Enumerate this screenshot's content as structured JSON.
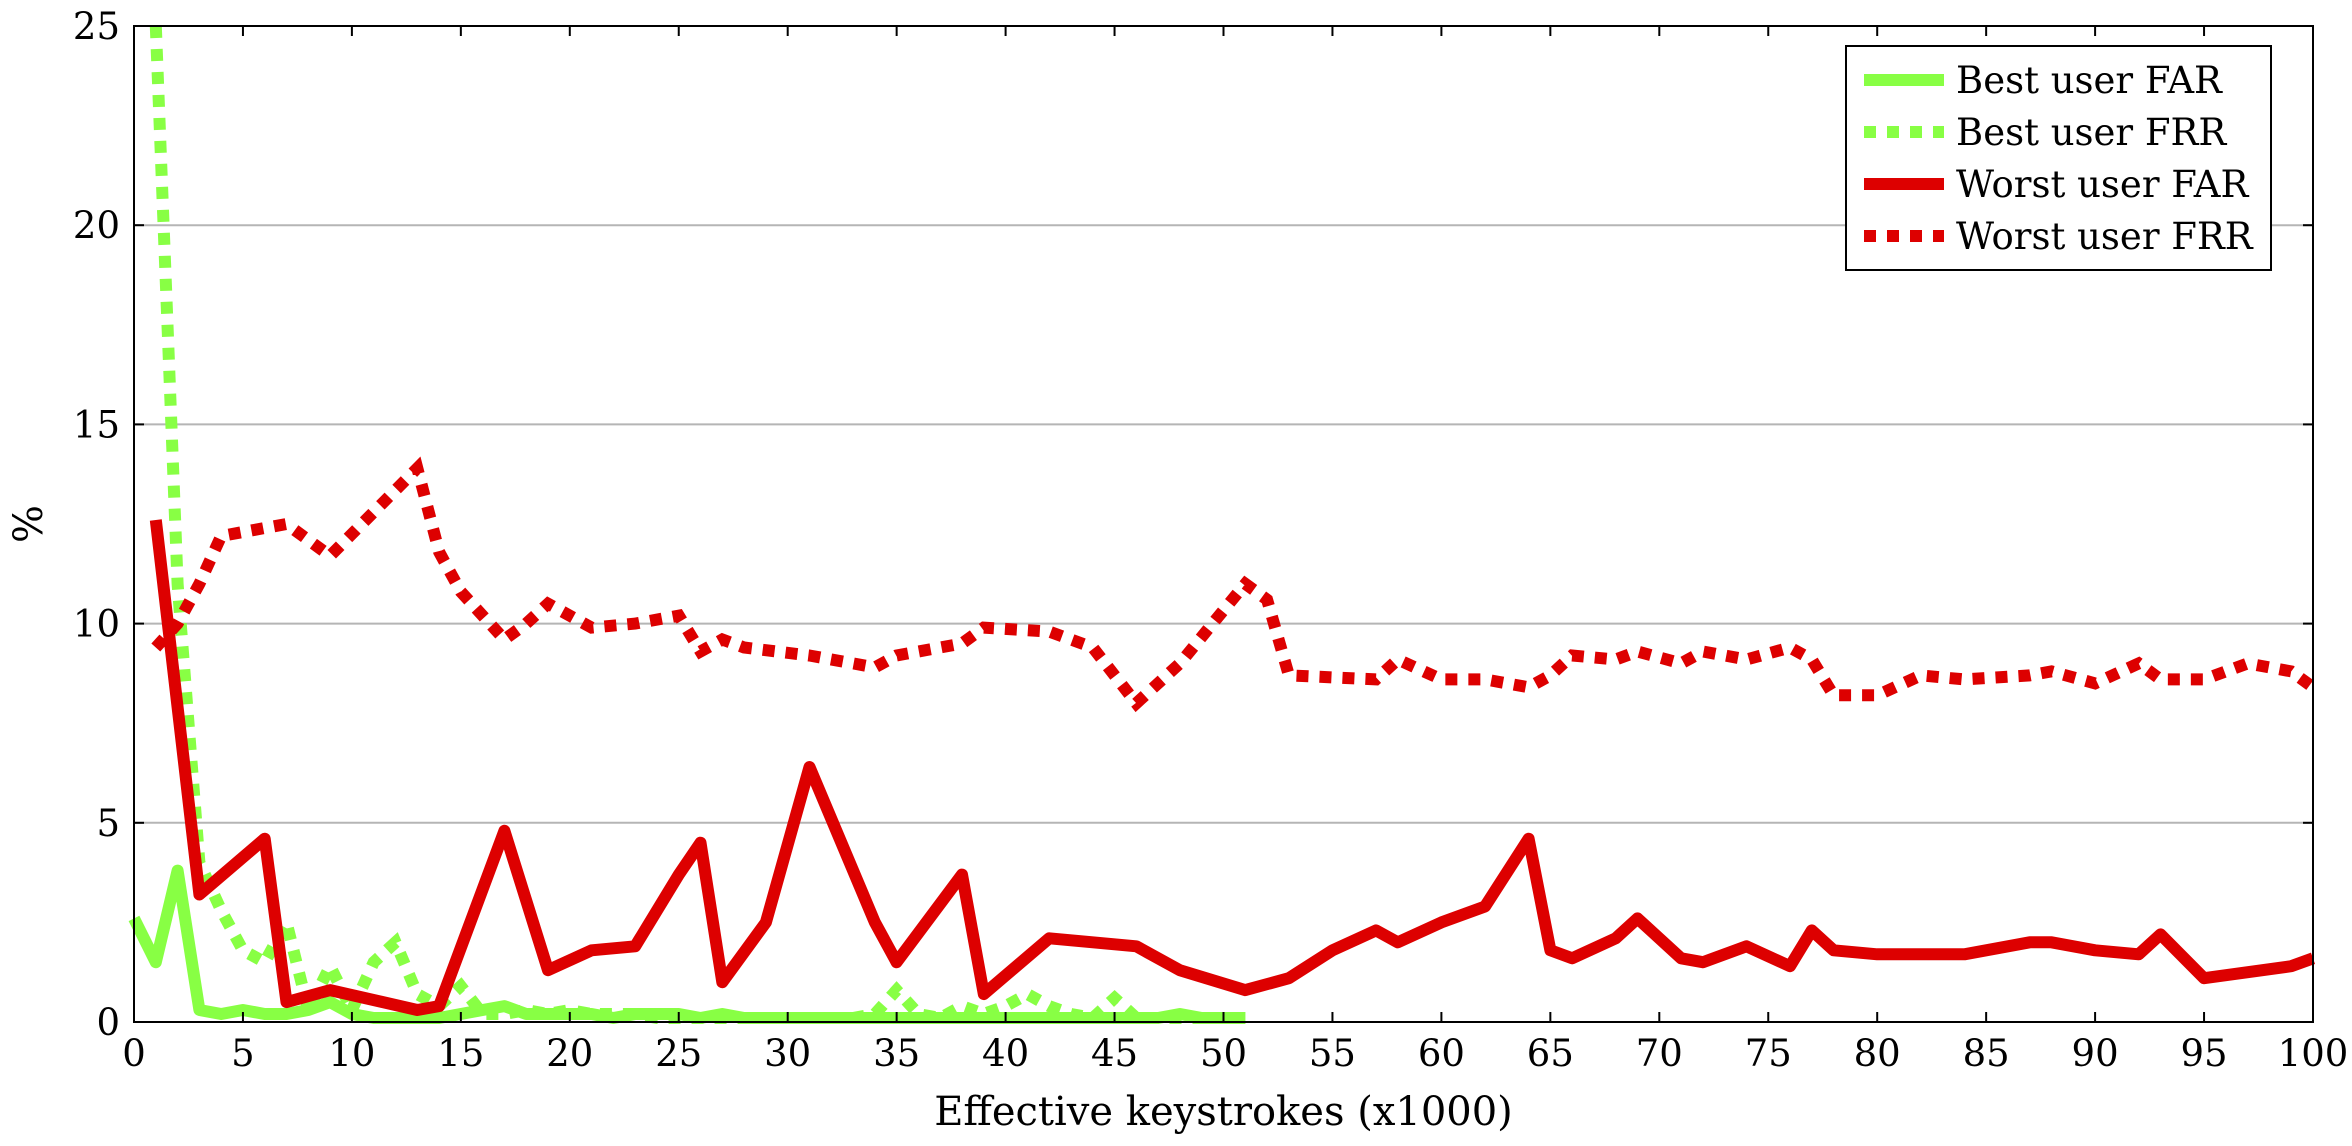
{
  "chart_data": {
    "type": "line",
    "xlabel": "Effective keystrokes (x1000)",
    "ylabel": "%",
    "xlim": [
      0,
      100
    ],
    "ylim": [
      0,
      25
    ],
    "xticks": [
      0,
      5,
      10,
      15,
      20,
      25,
      30,
      35,
      40,
      45,
      50,
      55,
      60,
      65,
      70,
      75,
      80,
      85,
      90,
      95,
      100
    ],
    "yticks": [
      0,
      5,
      10,
      15,
      20,
      25
    ],
    "grid": "horizontal",
    "legend_position": "top-right",
    "series": [
      {
        "name": "Best user FAR",
        "color": "#88ff44",
        "style": "solid",
        "x": [
          0,
          1,
          2,
          3,
          4,
          5,
          6,
          7,
          8,
          9,
          10,
          11,
          12,
          13,
          14,
          15,
          16,
          17,
          18,
          19,
          20,
          21,
          22,
          23,
          24,
          25,
          26,
          27,
          28,
          29,
          30,
          31,
          32,
          33,
          34,
          35,
          36,
          37,
          38,
          39,
          40,
          41,
          42,
          43,
          44,
          45,
          46,
          47,
          48,
          49,
          50,
          51
        ],
        "y": [
          2.6,
          1.5,
          3.8,
          0.3,
          0.2,
          0.3,
          0.2,
          0.2,
          0.3,
          0.5,
          0.2,
          0.1,
          0.1,
          0.1,
          0.1,
          0.2,
          0.3,
          0.4,
          0.2,
          0.2,
          0.2,
          0.2,
          0.1,
          0.2,
          0.2,
          0.2,
          0.1,
          0.2,
          0.1,
          0.1,
          0.1,
          0.1,
          0.1,
          0.1,
          0.1,
          0.1,
          0.1,
          0.1,
          0.1,
          0.1,
          0.1,
          0.1,
          0.1,
          0.1,
          0.1,
          0.1,
          0.1,
          0.1,
          0.2,
          0.1,
          0.1,
          0.1
        ]
      },
      {
        "name": "Best user FRR",
        "color": "#88ff44",
        "style": "dotted",
        "x": [
          1,
          2,
          3,
          4,
          5,
          6,
          7,
          8,
          9,
          10,
          11,
          12,
          13,
          14,
          15,
          16,
          17,
          18,
          19,
          20,
          21,
          22,
          23,
          24,
          25,
          26,
          27,
          28,
          29,
          30,
          31,
          32,
          33,
          34,
          35,
          36,
          37,
          38,
          39,
          40,
          41,
          42,
          43,
          44,
          45,
          46,
          47,
          48,
          49,
          50,
          51
        ],
        "y": [
          25,
          11.0,
          4.0,
          2.8,
          1.8,
          1.5,
          2.5,
          0.3,
          1.4,
          0.3,
          1.5,
          2.0,
          0.7,
          0.4,
          0.9,
          0.2,
          0.2,
          0.3,
          0.2,
          0.3,
          0.2,
          0.2,
          0.2,
          0.1,
          0.1,
          0.1,
          0.1,
          0.1,
          0.1,
          0.1,
          0.1,
          0.1,
          0.1,
          0.2,
          0.8,
          0.2,
          0.1,
          0.4,
          0.2,
          0.4,
          0.7,
          0.4,
          0.2,
          0.1,
          0.6,
          0.1,
          0.1,
          0.1,
          0.1,
          0.1,
          0.1
        ]
      },
      {
        "name": "Worst user FAR",
        "color": "#dd0000",
        "style": "solid",
        "x": [
          1,
          3,
          6,
          7,
          9,
          13,
          14,
          17,
          19,
          21,
          23,
          25,
          26,
          27,
          29,
          31,
          34,
          35,
          38,
          39,
          42,
          44,
          46,
          48,
          51,
          53,
          55,
          57,
          58,
          60,
          62,
          64,
          65,
          66,
          68,
          69,
          71,
          72,
          74,
          76,
          77,
          78,
          80,
          83,
          84,
          87,
          88,
          90,
          92,
          93,
          95,
          99,
          100
        ],
        "y": [
          12.6,
          3.2,
          4.6,
          0.5,
          0.8,
          0.3,
          0.4,
          4.8,
          1.3,
          1.8,
          1.9,
          3.7,
          4.5,
          1.0,
          2.5,
          6.4,
          2.5,
          1.5,
          3.7,
          0.7,
          2.1,
          2.0,
          1.9,
          1.3,
          0.8,
          1.1,
          1.8,
          2.3,
          2.0,
          2.5,
          2.9,
          4.6,
          1.8,
          1.6,
          2.1,
          2.6,
          1.6,
          1.5,
          1.9,
          1.4,
          2.3,
          1.8,
          1.7,
          1.7,
          1.7,
          2.0,
          2.0,
          1.8,
          1.7,
          2.2,
          1.1,
          1.4,
          1.6
        ]
      },
      {
        "name": "Worst user FRR",
        "color": "#dd0000",
        "style": "dotted",
        "x": [
          1,
          2,
          3,
          4,
          7,
          9,
          13,
          14,
          15,
          17,
          18,
          19,
          21,
          23,
          25,
          26,
          27,
          28,
          31,
          34,
          35,
          38,
          39,
          42,
          44,
          46,
          48,
          51,
          52,
          53,
          57,
          58,
          60,
          62,
          64,
          65,
          66,
          68,
          69,
          71,
          72,
          74,
          76,
          77,
          78,
          80,
          82,
          84,
          87,
          88,
          90,
          92,
          93,
          95,
          97,
          99,
          100
        ],
        "y": [
          9.4,
          10.0,
          11.0,
          12.2,
          12.5,
          11.7,
          13.9,
          11.8,
          10.8,
          9.6,
          10.0,
          10.5,
          9.9,
          10.0,
          10.2,
          9.3,
          9.6,
          9.4,
          9.2,
          8.9,
          9.2,
          9.5,
          9.9,
          9.8,
          9.4,
          8.0,
          9.0,
          11.0,
          10.6,
          8.7,
          8.6,
          9.1,
          8.6,
          8.6,
          8.4,
          8.7,
          9.2,
          9.1,
          9.3,
          9.0,
          9.3,
          9.1,
          9.4,
          9.1,
          8.2,
          8.2,
          8.7,
          8.6,
          8.7,
          8.8,
          8.5,
          9.0,
          8.6,
          8.6,
          9.0,
          8.8,
          8.4
        ]
      }
    ]
  }
}
